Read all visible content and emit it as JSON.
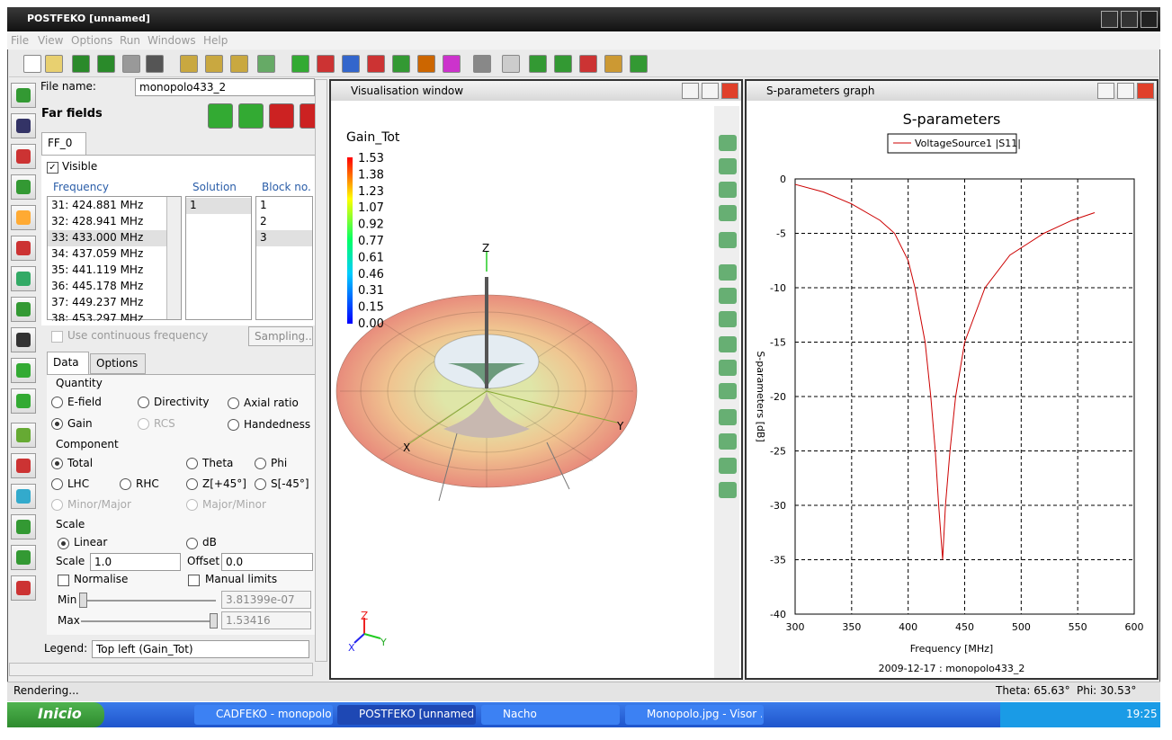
{
  "window": {
    "title": "POSTFEKO [unnamed]"
  },
  "menu": [
    "File",
    "View",
    "Options",
    "Run",
    "Windows",
    "Help"
  ],
  "left_panel": {
    "file_name_label": "File name:",
    "file_name": "monopolo433_2",
    "section": "Far fields",
    "tab": "FF_0",
    "visible": "Visible",
    "columns": [
      "Frequency",
      "Solution",
      "Block no."
    ],
    "frequencies": [
      "31: 424.881 MHz",
      "32: 428.941 MHz",
      "33: 433.000 MHz",
      "34: 437.059 MHz",
      "35: 441.119 MHz",
      "36: 445.178 MHz",
      "37: 449.237 MHz",
      "38: 453.297 MHz"
    ],
    "solutions": [
      "1"
    ],
    "blocks": [
      "1",
      "2",
      "3"
    ],
    "continuous": "Use continuous frequency",
    "sampling": "Sampling...",
    "tabs": [
      "Data",
      "Options"
    ],
    "quantity": {
      "title": "Quantity",
      "options": [
        "E-field",
        "Directivity",
        "Axial ratio",
        "Gain",
        "RCS",
        "Handedness"
      ]
    },
    "component": {
      "title": "Component",
      "options": [
        "Total",
        "Theta",
        "Phi",
        "LHC",
        "RHC",
        "Z[+45°]",
        "S[-45°]",
        "Minor/Major",
        "Major/Minor"
      ]
    },
    "scale": {
      "title": "Scale",
      "linear": "Linear",
      "db": "dB",
      "scale_label": "Scale",
      "scale_value": "1.0",
      "offset_label": "Offset",
      "offset_value": "0.0",
      "normalise": "Normalise",
      "manual": "Manual limits",
      "min_label": "Min",
      "min_value": "3.81399e-07",
      "max_label": "Max",
      "max_value": "1.53416"
    },
    "legend_label": "Legend:",
    "legend_value": "Top left (Gain_Tot)"
  },
  "visualisation": {
    "title": "Visualisation window",
    "quantity": "Gain_Tot",
    "colorbar_labels": [
      "1.53",
      "1.38",
      "1.23",
      "1.07",
      "0.92",
      "0.77",
      "0.61",
      "0.46",
      "0.31",
      "0.15",
      "0.00"
    ],
    "axes": [
      "Z",
      "X",
      "Y"
    ]
  },
  "graph_window": {
    "title": "S-parameters graph",
    "footer": "2009-12-17 : monopolo433_2"
  },
  "chart_data": {
    "type": "line",
    "title": "S-parameters",
    "x_label": "Frequency [MHz]",
    "y_label": "S-parameters [dB]",
    "x": [
      300,
      325,
      350,
      375,
      388,
      400,
      406,
      415,
      420,
      424,
      427,
      430.5,
      433,
      437,
      442,
      450,
      468,
      490,
      520,
      545,
      565
    ],
    "series": [
      {
        "name": "VoltageSource1 |S11|",
        "color": "#cc0000",
        "values": [
          -0.5,
          -1.2,
          -2.3,
          -3.8,
          -5,
          -7.5,
          -10,
          -15,
          -20,
          -25,
          -30,
          -35,
          -30,
          -25,
          -20,
          -15,
          -10,
          -7,
          -5,
          -3.8,
          -3.1
        ]
      }
    ],
    "xlim": [
      300,
      600
    ],
    "xticks": [
      300,
      350,
      400,
      450,
      500,
      550,
      600
    ],
    "ylim": [
      -40,
      0
    ],
    "yticks": [
      0,
      -5,
      -10,
      -15,
      -20,
      -25,
      -30,
      -35,
      -40
    ],
    "grid": true
  },
  "status": {
    "left": "Rendering...",
    "theta": "Theta: 65.63°",
    "phi": "Phi: 30.53°"
  },
  "taskbar": {
    "start": "Inicio",
    "items": [
      "CADFEKO - monopolo...",
      "POSTFEKO [unnamed]",
      "Nacho",
      "Monopolo.jpg - Visor ..."
    ],
    "clock": "19:25"
  }
}
